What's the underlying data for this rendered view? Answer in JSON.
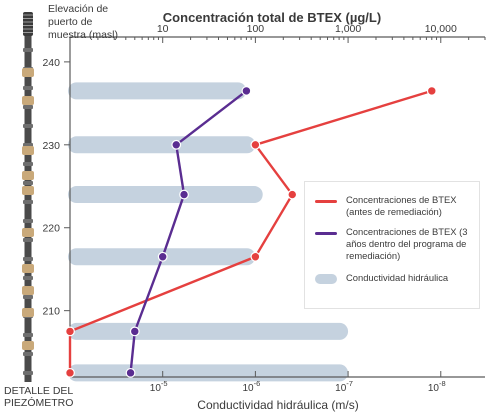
{
  "chart_data": {
    "type": "line",
    "title": "Concentración total de BTEX (µg/L)",
    "xlabel_bottom": "Conductividad hidráulica (m/s)",
    "ylabel": "Elevación de puerto de muestra (masl)",
    "ylabel_lines": [
      "Elevación de",
      "puerto de",
      "muestra (masl)"
    ],
    "piezometer_label": [
      "DETALLE DEL",
      "PIEZÓMETRO"
    ],
    "x_top": {
      "scale": "log",
      "ticks": [
        10,
        100,
        1000,
        10000
      ],
      "tick_labels": [
        "10",
        "100",
        "1,000",
        "10,000"
      ],
      "range": [
        1,
        30000
      ]
    },
    "x_bottom": {
      "tick_exponents": [
        -5,
        -6,
        -7,
        -8
      ],
      "tick_base": "10"
    },
    "y": {
      "range": [
        202,
        243
      ],
      "ticks": [
        210,
        220,
        230,
        240
      ],
      "tick_labels": [
        "210",
        "220",
        "230",
        "240"
      ]
    },
    "series": [
      {
        "name": "Concentraciones de BTEX (antes de remediación)",
        "color": "#e5403f",
        "points": [
          {
            "x": 8000,
            "y": 236.5
          },
          {
            "x": 100,
            "y": 230
          },
          {
            "x": 250,
            "y": 224
          },
          {
            "x": 100,
            "y": 216.5
          },
          {
            "x": 1,
            "y": 207.5
          },
          {
            "x": 1,
            "y": 202.5
          }
        ]
      },
      {
        "name": "Concentraciones de BTEX (3 años dentro del programa de remediación)",
        "color": "#5a2d91",
        "points": [
          {
            "x": 80,
            "y": 236.5
          },
          {
            "x": 14,
            "y": 230
          },
          {
            "x": 17,
            "y": 224
          },
          {
            "x": 10,
            "y": 216.5
          },
          {
            "x": 5,
            "y": 207.5
          },
          {
            "x": 4.5,
            "y": 202.5
          }
        ]
      }
    ],
    "conductivity_bars": {
      "name": "Conductividad hidráulica",
      "color": "#c5d2df",
      "bars": [
        {
          "y": 236.5,
          "x_end": 80
        },
        {
          "y": 230,
          "x_end": 100
        },
        {
          "y": 224,
          "x_end": 120
        },
        {
          "y": 216.5,
          "x_end": 100
        },
        {
          "y": 207.5,
          "x_end": 1000
        },
        {
          "y": 202.5,
          "x_end": 1000
        }
      ]
    },
    "legend": {
      "position": "right",
      "items": [
        {
          "label": "Concentraciones de BTEX (antes de remediación)",
          "color": "#e5403f",
          "kind": "line"
        },
        {
          "label": "Concentraciones de BTEX (3 años dentro del programa de remediación)",
          "color": "#5a2d91",
          "kind": "line"
        },
        {
          "label": "Conductividad hidráulica",
          "color": "#c5d2df",
          "kind": "bar"
        }
      ]
    }
  }
}
